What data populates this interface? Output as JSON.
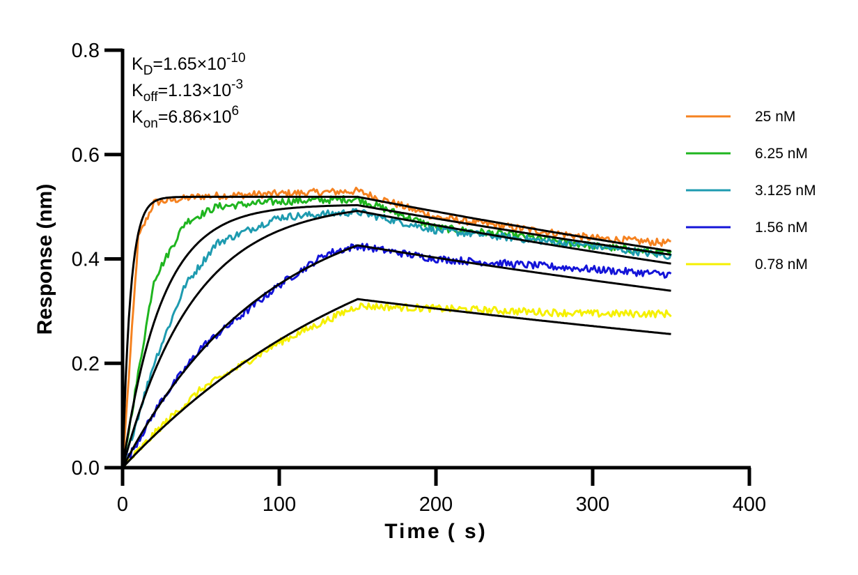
{
  "chart_data": {
    "type": "line",
    "title": "",
    "xlabel": "Time ( s)",
    "ylabel": "Response (nm)",
    "xlim": [
      0,
      400
    ],
    "ylim": [
      0,
      0.8
    ],
    "x_ticks": [
      "0",
      "100",
      "200",
      "300",
      "400"
    ],
    "y_ticks": [
      "0.0",
      "0.2",
      "0.4",
      "0.6",
      "0.8"
    ],
    "grid": false,
    "legend_position": "right",
    "association_end_s": 150,
    "dissociation_end_s": 350,
    "annotations": [
      {
        "main": "K",
        "sub": "D",
        "rest": "=1.65×10",
        "sup": "-10"
      },
      {
        "main": "K",
        "sub": "off",
        "rest": "=1.13×10",
        "sup": "-3"
      },
      {
        "main": "K",
        "sub": "on",
        "rest": "=6.86×10",
        "sup": "6"
      }
    ],
    "series": [
      {
        "name": "25 nM",
        "color": "#f58220",
        "fit_peak": 0.519,
        "fit_end": 0.415,
        "kobs": 0.2,
        "data_offset_assoc": 0.008,
        "data_offset_dissoc": 0.012,
        "points": [
          [
            0,
            0
          ],
          [
            10,
            0.44
          ],
          [
            20,
            0.508
          ],
          [
            50,
            0.52
          ],
          [
            100,
            0.525
          ],
          [
            150,
            0.53
          ],
          [
            200,
            0.48
          ],
          [
            250,
            0.46
          ],
          [
            300,
            0.44
          ],
          [
            350,
            0.43
          ]
        ]
      },
      {
        "name": "6.25 nM",
        "color": "#1fb51f",
        "fit_peak": 0.503,
        "fit_end": 0.408,
        "kobs": 0.04,
        "data_offset_assoc": 0.03,
        "data_offset_dissoc": 0.0,
        "points": [
          [
            0,
            0
          ],
          [
            20,
            0.36
          ],
          [
            40,
            0.47
          ],
          [
            60,
            0.5
          ],
          [
            100,
            0.51
          ],
          [
            150,
            0.515
          ],
          [
            200,
            0.46
          ],
          [
            250,
            0.445
          ],
          [
            300,
            0.425
          ],
          [
            350,
            0.41
          ]
        ]
      },
      {
        "name": "3.125 nM",
        "color": "#1e9bb0",
        "fit_peak": 0.492,
        "fit_end": 0.391,
        "kobs": 0.022,
        "data_offset_assoc": 0.0,
        "data_offset_dissoc": 0.012,
        "points": [
          [
            0,
            0
          ],
          [
            20,
            0.2
          ],
          [
            40,
            0.35
          ],
          [
            60,
            0.43
          ],
          [
            100,
            0.48
          ],
          [
            150,
            0.49
          ],
          [
            200,
            0.455
          ],
          [
            250,
            0.44
          ],
          [
            300,
            0.425
          ],
          [
            350,
            0.405
          ]
        ]
      },
      {
        "name": "1.56 nM",
        "color": "#1414d8",
        "fit_peak": 0.426,
        "fit_end": 0.339,
        "kobs": 0.011,
        "data_offset_assoc": -0.02,
        "data_offset_dissoc": 0.02,
        "points": [
          [
            0,
            0
          ],
          [
            25,
            0.13
          ],
          [
            50,
            0.23
          ],
          [
            100,
            0.35
          ],
          [
            130,
            0.41
          ],
          [
            150,
            0.425
          ],
          [
            200,
            0.4
          ],
          [
            250,
            0.39
          ],
          [
            300,
            0.38
          ],
          [
            350,
            0.37
          ]
        ]
      },
      {
        "name": "0.78 nM",
        "color": "#f5f000",
        "fit_peak": 0.323,
        "fit_end": 0.256,
        "kobs": 0.0058,
        "data_offset_assoc": -0.015,
        "data_offset_dissoc": 0.035,
        "points": [
          [
            0,
            0
          ],
          [
            25,
            0.08
          ],
          [
            50,
            0.15
          ],
          [
            100,
            0.24
          ],
          [
            150,
            0.31
          ],
          [
            200,
            0.305
          ],
          [
            250,
            0.3
          ],
          [
            300,
            0.295
          ],
          [
            350,
            0.295
          ]
        ]
      }
    ]
  }
}
